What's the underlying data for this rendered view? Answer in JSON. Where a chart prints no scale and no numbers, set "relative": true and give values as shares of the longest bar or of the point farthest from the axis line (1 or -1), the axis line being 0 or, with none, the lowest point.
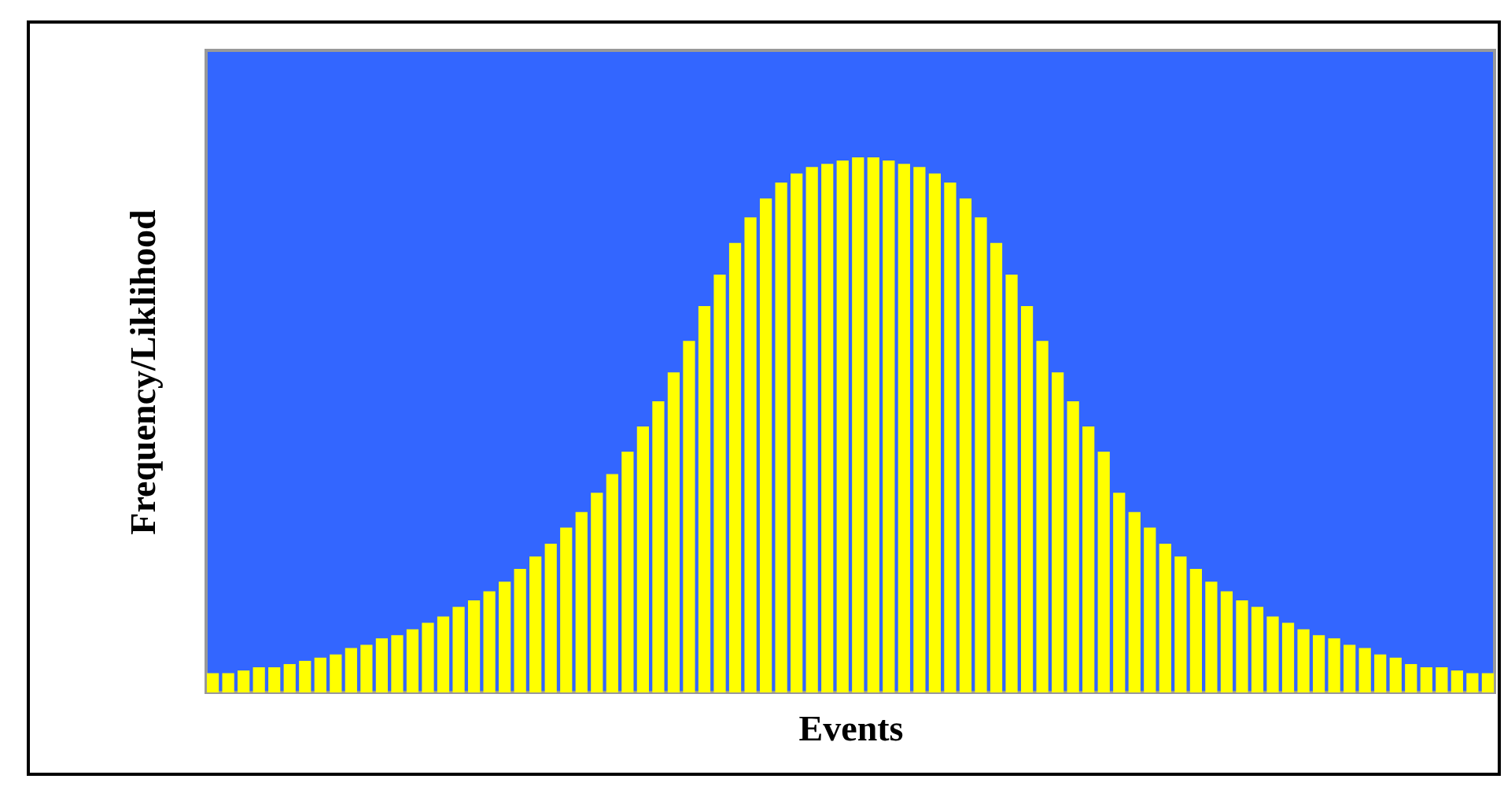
{
  "chart_data": {
    "type": "bar",
    "xlabel": "Events",
    "ylabel": "Frequency/Liklihood",
    "relative": true,
    "color": "#ffff00",
    "categories": [
      null,
      null,
      null,
      null,
      null,
      null,
      null,
      null,
      null,
      null,
      null,
      null,
      null,
      null,
      null,
      null,
      null,
      null,
      null,
      null,
      null,
      null,
      null,
      null,
      null,
      null,
      null,
      null,
      null,
      null,
      null,
      null,
      null,
      null,
      null,
      null,
      null,
      null,
      null,
      null,
      null,
      null,
      null,
      null,
      null,
      null,
      null,
      null,
      null,
      null,
      null,
      null,
      null,
      null,
      null,
      null,
      null,
      null,
      null,
      null,
      null,
      null,
      null,
      null,
      null,
      null,
      null,
      null,
      null,
      null,
      null,
      null,
      null,
      null,
      null,
      null,
      null,
      null,
      null,
      null,
      null,
      null,
      null,
      null
    ],
    "values": [
      0.036,
      0.036,
      0.041,
      0.047,
      0.047,
      0.053,
      0.059,
      0.065,
      0.071,
      0.083,
      0.089,
      0.101,
      0.107,
      0.118,
      0.13,
      0.142,
      0.16,
      0.172,
      0.189,
      0.207,
      0.231,
      0.254,
      0.278,
      0.308,
      0.337,
      0.373,
      0.408,
      0.45,
      0.497,
      0.544,
      0.598,
      0.657,
      0.722,
      0.781,
      0.84,
      0.888,
      0.923,
      0.953,
      0.97,
      0.982,
      0.988,
      0.994,
      1,
      1,
      0.994,
      0.988,
      0.982,
      0.97,
      0.953,
      0.923,
      0.888,
      0.84,
      0.781,
      0.722,
      0.657,
      0.598,
      0.544,
      0.497,
      0.45,
      0.373,
      0.337,
      0.308,
      0.278,
      0.254,
      0.231,
      0.207,
      0.189,
      0.172,
      0.16,
      0.142,
      0.13,
      0.118,
      0.107,
      0.101,
      0.089,
      0.083,
      0.071,
      0.065,
      0.053,
      0.047,
      0.047,
      0.041,
      0.036,
      0.036
    ]
  }
}
